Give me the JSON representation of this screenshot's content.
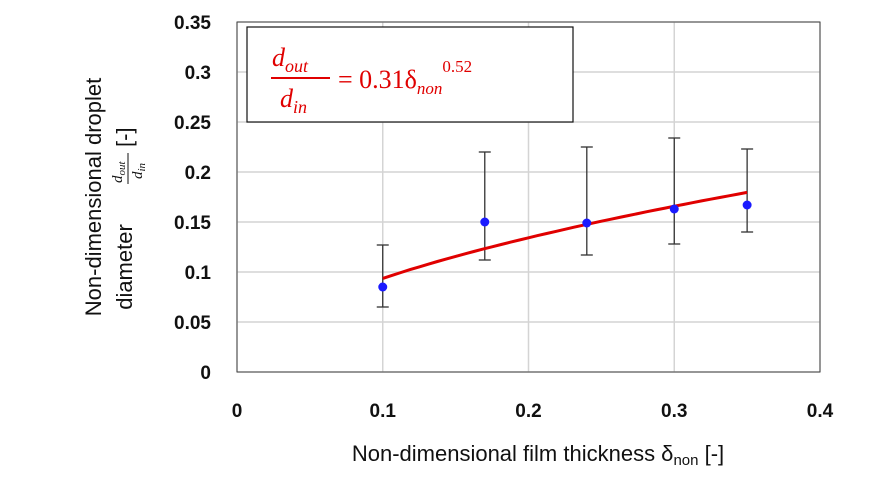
{
  "chart_data": {
    "type": "scatter",
    "xlim": [
      0,
      0.4
    ],
    "ylim": [
      0,
      0.35
    ],
    "x_ticks": [
      "0",
      "0.1",
      "0.2",
      "0.3",
      "0.4"
    ],
    "y_ticks": [
      "0",
      "0.05",
      "0.1",
      "0.15",
      "0.2",
      "0.25",
      "0.3",
      "0.35"
    ],
    "xlabel": {
      "text": "Non-dimensional film thickness δ",
      "subscript": "non",
      "unit": " [-]"
    },
    "ylabel": {
      "line1": "Non-dimensional droplet",
      "line2_prefix": "diameter",
      "frac_num": "d",
      "frac_num_sub": "out",
      "frac_den": "d",
      "frac_den_sub": "in",
      "unit": "[-]"
    },
    "grid": true,
    "series": [
      {
        "kind": "points",
        "color": "#1a1aff",
        "points": [
          {
            "x": 0.1,
            "y": 0.085,
            "y_low": 0.065,
            "y_high": 0.127
          },
          {
            "x": 0.17,
            "y": 0.15,
            "y_low": 0.112,
            "y_high": 0.22
          },
          {
            "x": 0.24,
            "y": 0.149,
            "y_low": 0.117,
            "y_high": 0.225
          },
          {
            "x": 0.3,
            "y": 0.163,
            "y_low": 0.128,
            "y_high": 0.234
          },
          {
            "x": 0.35,
            "y": 0.167,
            "y_low": 0.14,
            "y_high": 0.223
          }
        ]
      },
      {
        "kind": "fit",
        "color": "#e00000",
        "coefficient": 0.31,
        "exponent": 0.52,
        "x_range": [
          0.1,
          0.35
        ]
      }
    ],
    "equation": {
      "num": "d",
      "num_sub": "out",
      "den": "d",
      "den_sub": "in",
      "rhs_coef": "= 0.31δ",
      "rhs_sub": "non",
      "rhs_exp": "0.52"
    }
  }
}
